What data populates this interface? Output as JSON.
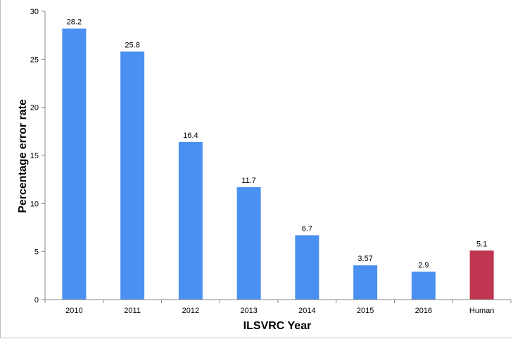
{
  "chart_data": {
    "type": "bar",
    "xlabel": "ILSVRC Year",
    "ylabel": "Percentage error rate",
    "ylim": [
      0,
      30
    ],
    "yticks": [
      0,
      5,
      10,
      15,
      20,
      25,
      30
    ],
    "categories": [
      "2010",
      "2011",
      "2012",
      "2013",
      "2014",
      "2015",
      "2016",
      "Human"
    ],
    "values": [
      28.2,
      25.8,
      16.4,
      11.7,
      6.7,
      3.57,
      2.9,
      5.1
    ],
    "data_labels": [
      "28.2",
      "25.8",
      "16.4",
      "11.7",
      "6.7",
      "3.57",
      "2.9",
      "5.1"
    ],
    "bar_colors": [
      "#4a90f0",
      "#4a90f0",
      "#4a90f0",
      "#4a90f0",
      "#4a90f0",
      "#4a90f0",
      "#4a90f0",
      "#c0354f"
    ],
    "grid": false,
    "legend": "none"
  }
}
